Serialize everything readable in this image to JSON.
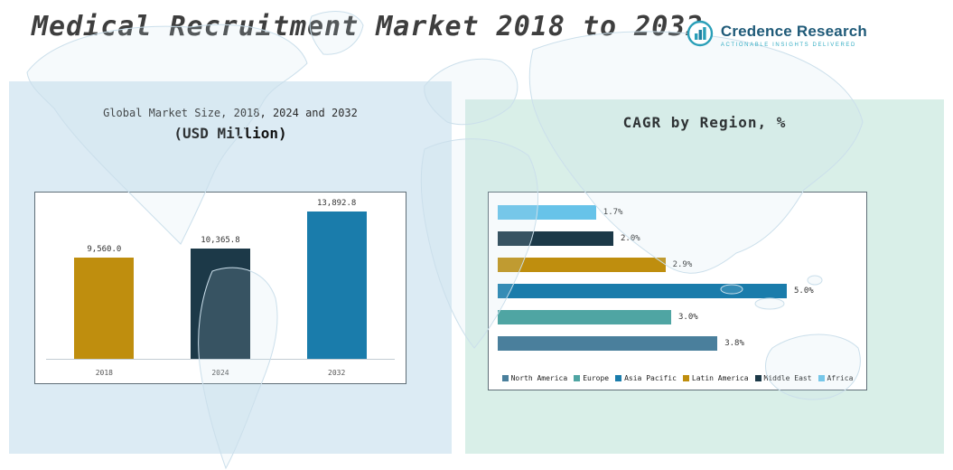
{
  "header": {
    "title": "Medical Recruitment Market 2018 to 2032",
    "logo": {
      "name": "Credence Research",
      "tagline": "Actionable Insights Delivered"
    }
  },
  "colors": {
    "gold": "#bf8e0e",
    "dark_navy": "#1c3948",
    "blue": "#1a7cab",
    "teal": "#4fa5a3",
    "steel_blue": "#4a7f9c",
    "light_blue": "#67c3e9",
    "panel_left_bg": "#dcebf4",
    "panel_right_bg": "#d9efe8"
  },
  "chart_data": [
    {
      "type": "bar",
      "title": "Global Market Size, 2018, 2024 and 2032",
      "subtitle": "(USD Million)",
      "categories": [
        "2018",
        "2024",
        "2032"
      ],
      "values": [
        9560.0,
        10365.8,
        13892.8
      ],
      "value_labels": [
        "9,560.0",
        "10,365.8",
        "13,892.8"
      ],
      "bar_colors": [
        "#bf8e0e",
        "#1c3948",
        "#1a7cab"
      ],
      "xlabel": "",
      "ylabel": "USD Million",
      "ylim": [
        0,
        14500
      ],
      "grid": false,
      "legend_position": "none"
    },
    {
      "type": "bar",
      "orientation": "horizontal",
      "title": "CAGR by Region, %",
      "categories": [
        "Africa",
        "Middle East",
        "Latin America",
        "Asia Pacific",
        "Europe",
        "North America"
      ],
      "values": [
        1.7,
        2.0,
        2.9,
        5.0,
        3.0,
        3.8
      ],
      "value_labels": [
        "1.7%",
        "2.0%",
        "2.9%",
        "5.0%",
        "3.0%",
        "3.8%"
      ],
      "bar_colors": [
        "#67c3e9",
        "#1c3948",
        "#bf8e0e",
        "#1a7cab",
        "#4fa5a3",
        "#4a7f9c"
      ],
      "xlim": [
        0,
        5.5
      ],
      "grid": false,
      "legend_position": "bottom",
      "legend": [
        {
          "label": "North America",
          "color": "#4a7f9c"
        },
        {
          "label": "Europe",
          "color": "#4fa5a3"
        },
        {
          "label": "Asia Pacific",
          "color": "#1a7cab"
        },
        {
          "label": "Latin America",
          "color": "#bf8e0e"
        },
        {
          "label": "Middle East",
          "color": "#1c3948"
        },
        {
          "label": "Africa",
          "color": "#67c3e9"
        }
      ]
    }
  ]
}
